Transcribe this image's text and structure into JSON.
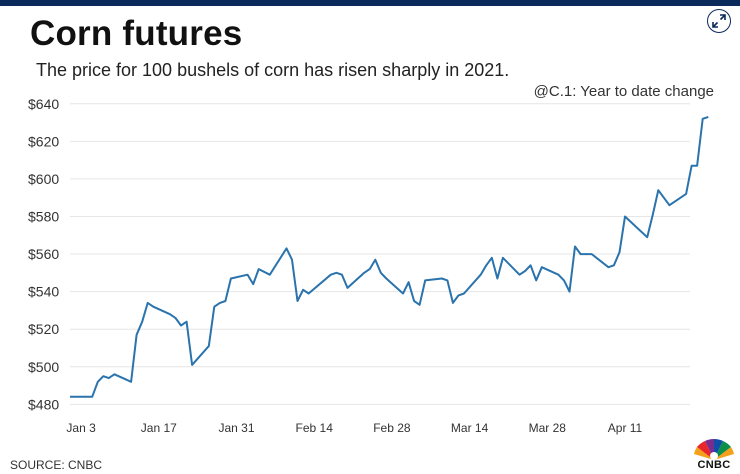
{
  "header": {
    "title": "Corn futures",
    "subtitle": "The price for 100 bushels of corn has risen sharply in 2021."
  },
  "chart_note": "@C.1: Year to date change",
  "footer": {
    "source": "SOURCE: CNBC",
    "logo_text": "CNBC"
  },
  "icons": {
    "expand": "expand-arrows-icon",
    "logo": "cnbc-peacock-logo"
  },
  "colors": {
    "line": "#2a73ad",
    "grid": "#e6e6e6",
    "top_bar": "#0a2a5c"
  },
  "chart_data": {
    "type": "line",
    "title": "Corn futures",
    "subtitle": "The price for 100 bushels of corn has risen sharply in 2021.",
    "xlabel": "",
    "ylabel": "",
    "y_tick_labels": [
      "$480",
      "$500",
      "$520",
      "$540",
      "$560",
      "$580",
      "$600",
      "$620",
      "$640"
    ],
    "y_tick_values": [
      480,
      500,
      520,
      540,
      560,
      580,
      600,
      620,
      640
    ],
    "ylim": [
      477,
      642
    ],
    "x_tick_labels": [
      "Jan 3",
      "Jan 17",
      "Jan 31",
      "Feb 14",
      "Feb 28",
      "Mar 14",
      "Mar 28",
      "Apr 11"
    ],
    "x_tick_dates": [
      "2021-01-03",
      "2021-01-17",
      "2021-01-31",
      "2021-02-14",
      "2021-02-28",
      "2021-03-14",
      "2021-03-28",
      "2021-04-11"
    ],
    "xlim": [
      "2021-01-01",
      "2021-04-23"
    ],
    "grid": true,
    "series": [
      {
        "values": [
          [
            "2021-01-01",
            484
          ],
          [
            "2021-01-05",
            484
          ],
          [
            "2021-01-06",
            492
          ],
          [
            "2021-01-07",
            495
          ],
          [
            "2021-01-08",
            494
          ],
          [
            "2021-01-09",
            496
          ],
          [
            "2021-01-12",
            492
          ],
          [
            "2021-01-13",
            517
          ],
          [
            "2021-01-14",
            524
          ],
          [
            "2021-01-15",
            534
          ],
          [
            "2021-01-16",
            532
          ],
          [
            "2021-01-19",
            528
          ],
          [
            "2021-01-20",
            526
          ],
          [
            "2021-01-21",
            522
          ],
          [
            "2021-01-22",
            524
          ],
          [
            "2021-01-23",
            501
          ],
          [
            "2021-01-26",
            511
          ],
          [
            "2021-01-27",
            532
          ],
          [
            "2021-01-28",
            534
          ],
          [
            "2021-01-29",
            535
          ],
          [
            "2021-01-30",
            547
          ],
          [
            "2021-02-02",
            549
          ],
          [
            "2021-02-03",
            544
          ],
          [
            "2021-02-04",
            552
          ],
          [
            "2021-02-06",
            549
          ],
          [
            "2021-02-09",
            563
          ],
          [
            "2021-02-10",
            557
          ],
          [
            "2021-02-11",
            535
          ],
          [
            "2021-02-12",
            541
          ],
          [
            "2021-02-13",
            539
          ],
          [
            "2021-02-17",
            549
          ],
          [
            "2021-02-18",
            550
          ],
          [
            "2021-02-19",
            549
          ],
          [
            "2021-02-20",
            542
          ],
          [
            "2021-02-23",
            550
          ],
          [
            "2021-02-24",
            552
          ],
          [
            "2021-02-25",
            557
          ],
          [
            "2021-02-26",
            550
          ],
          [
            "2021-02-27",
            547
          ],
          [
            "2021-03-02",
            539
          ],
          [
            "2021-03-03",
            545
          ],
          [
            "2021-03-04",
            535
          ],
          [
            "2021-03-05",
            533
          ],
          [
            "2021-03-06",
            546
          ],
          [
            "2021-03-09",
            547
          ],
          [
            "2021-03-10",
            546
          ],
          [
            "2021-03-11",
            534
          ],
          [
            "2021-03-12",
            538
          ],
          [
            "2021-03-13",
            539
          ],
          [
            "2021-03-16",
            549
          ],
          [
            "2021-03-17",
            554
          ],
          [
            "2021-03-18",
            558
          ],
          [
            "2021-03-19",
            547
          ],
          [
            "2021-03-20",
            558
          ],
          [
            "2021-03-23",
            549
          ],
          [
            "2021-03-24",
            551
          ],
          [
            "2021-03-25",
            554
          ],
          [
            "2021-03-26",
            546
          ],
          [
            "2021-03-27",
            553
          ],
          [
            "2021-03-30",
            549
          ],
          [
            "2021-03-31",
            546
          ],
          [
            "2021-04-01",
            540
          ],
          [
            "2021-04-02",
            564
          ],
          [
            "2021-04-03",
            560
          ],
          [
            "2021-04-05",
            560
          ],
          [
            "2021-04-08",
            553
          ],
          [
            "2021-04-09",
            554
          ],
          [
            "2021-04-10",
            561
          ],
          [
            "2021-04-11",
            580
          ],
          [
            "2021-04-15",
            569
          ],
          [
            "2021-04-16",
            581
          ],
          [
            "2021-04-17",
            594
          ],
          [
            "2021-04-19",
            586
          ],
          [
            "2021-04-22",
            592
          ],
          [
            "2021-04-23",
            607
          ],
          [
            "2021-04-24",
            607
          ],
          [
            "2021-04-25",
            632
          ],
          [
            "2021-04-26",
            633
          ]
        ]
      }
    ]
  }
}
